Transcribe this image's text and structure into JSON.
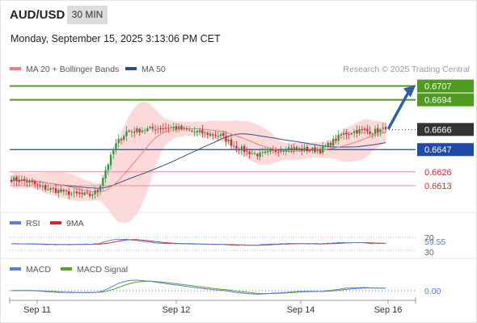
{
  "header": {
    "symbol": "AUD/USD",
    "timeframe": "30 MIN",
    "datetime": "Monday, September 15, 2025 3:13:06 PM CET"
  },
  "legend": {
    "ma20_bb": {
      "label": "MA 20 + Bollinger Bands",
      "color": "#f08080"
    },
    "ma50": {
      "label": "MA 50",
      "color": "#2e4f8f"
    },
    "credit": "Research © 2025 Trading Central"
  },
  "colors": {
    "up_candle": "#2e9c46",
    "down_candle": "#d42c2c",
    "resistance": "#4f9b1f",
    "pivot": "#1f4aa8",
    "support": "#f28d8d",
    "last_price": "#333333",
    "arrow": "#2f5fa8",
    "bollinger_fill": "#fbd3d3",
    "rsi": "#5b7fd6",
    "rsi_ma": "#cc2a2a",
    "macd": "#5b7fd6",
    "macd_signal": "#5aa02c"
  },
  "chart_data": {
    "type": "candlestick",
    "x_axis_ticks": [
      "Sep 11",
      "Sep 12",
      "Sep 14",
      "Sep 16"
    ],
    "ylim": [
      0.659,
      0.6712
    ],
    "levels": [
      {
        "value": 0.6707,
        "label": "0.6707",
        "kind": "resistance"
      },
      {
        "value": 0.6694,
        "label": "0.6694",
        "kind": "resistance"
      },
      {
        "value": 0.6666,
        "label": "0.6666",
        "kind": "last"
      },
      {
        "value": 0.6647,
        "label": "0.6647",
        "kind": "pivot"
      },
      {
        "value": 0.6626,
        "label": "0.6626",
        "kind": "support"
      },
      {
        "value": 0.6613,
        "label": "0.6613",
        "kind": "support"
      }
    ],
    "price_waypoints": [
      [
        0,
        0.6619
      ],
      [
        6,
        0.6617
      ],
      [
        12,
        0.6611
      ],
      [
        18,
        0.6608
      ],
      [
        24,
        0.6605
      ],
      [
        30,
        0.6604
      ],
      [
        33,
        0.6608
      ],
      [
        36,
        0.6628
      ],
      [
        40,
        0.6652
      ],
      [
        44,
        0.6664
      ],
      [
        55,
        0.6667
      ],
      [
        62,
        0.6668
      ],
      [
        70,
        0.6664
      ],
      [
        80,
        0.666
      ],
      [
        85,
        0.6651
      ],
      [
        90,
        0.6645
      ],
      [
        95,
        0.6642
      ],
      [
        100,
        0.6645
      ],
      [
        105,
        0.6649
      ],
      [
        112,
        0.6647
      ],
      [
        118,
        0.6646
      ],
      [
        123,
        0.6655
      ],
      [
        127,
        0.6662
      ],
      [
        133,
        0.6665
      ],
      [
        138,
        0.6664
      ],
      [
        143,
        0.6666
      ]
    ],
    "candle_count": 144,
    "projection": {
      "from": 0.6666,
      "to": 0.6707
    },
    "indicators": {
      "rsi": {
        "label": "RSI",
        "ma_label": "9MA",
        "value": "59.55",
        "levels": [
          "70",
          "30"
        ]
      },
      "macd": {
        "label": "MACD",
        "signal_label": "MACD Signal",
        "value": "0.00"
      }
    }
  }
}
